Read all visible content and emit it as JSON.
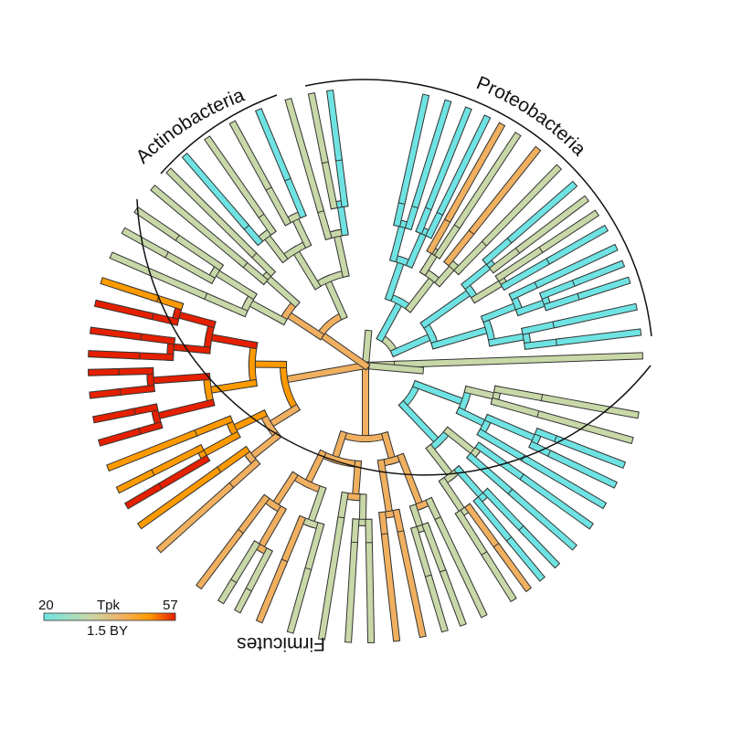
{
  "diagram": {
    "type": "circular phylogenetic tree",
    "branch_color_scale": [
      "#6fe3e3",
      "#c8d8a8",
      "#f0b060",
      "#ff9a00",
      "#e42000"
    ],
    "clades": [
      {
        "label": "Actinobacteria"
      },
      {
        "label": "Proteobacteria"
      },
      {
        "label": "Firmicutes"
      }
    ]
  },
  "legend": {
    "min_label": "20",
    "title": "Tpk",
    "max_label": "57",
    "subtitle": "1.5 BY",
    "gradient": [
      "#6fe3e3",
      "#c8d8a8",
      "#f0b060",
      "#ff9a00",
      "#e42000"
    ]
  }
}
